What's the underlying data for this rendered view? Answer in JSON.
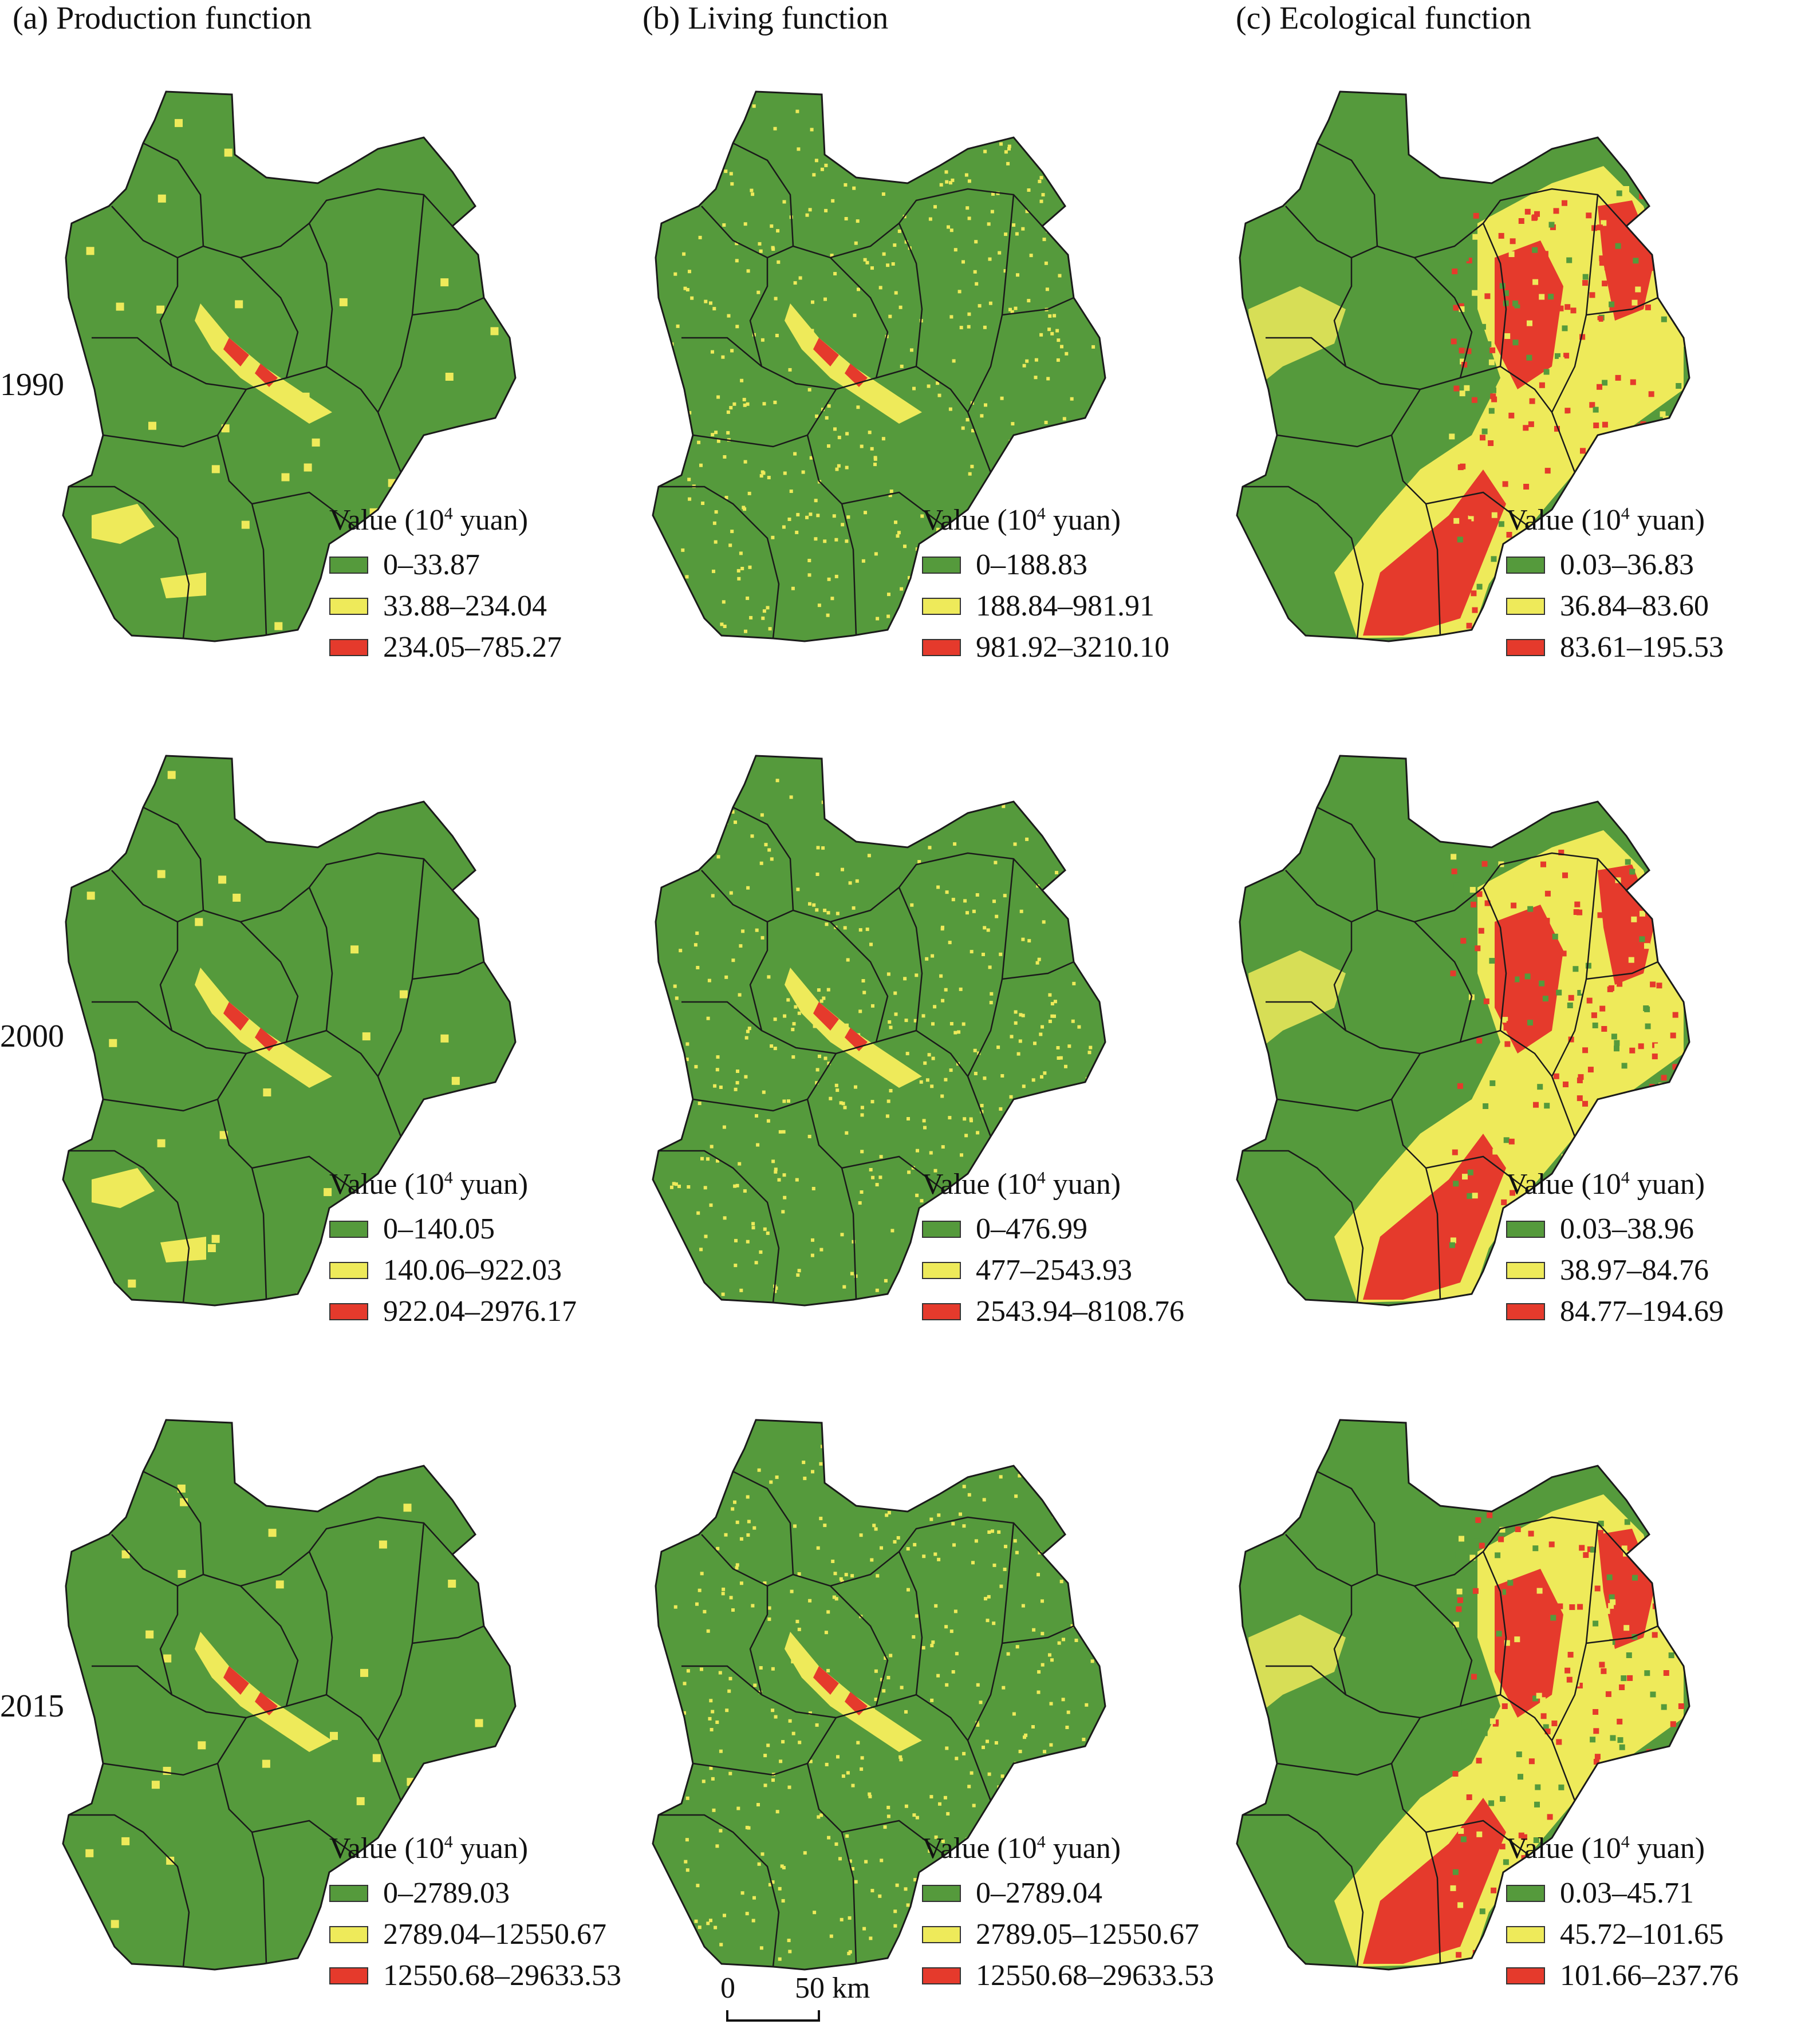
{
  "columns": [
    {
      "title": "(a) Production function"
    },
    {
      "title": "(b) Living function"
    },
    {
      "title": "(c) Ecological function"
    }
  ],
  "rows": [
    {
      "year": "1990"
    },
    {
      "year": "2000"
    },
    {
      "year": "2015"
    }
  ],
  "legend_title": {
    "prefix": "Value (10",
    "sup": "4",
    "suffix": " yuan)"
  },
  "class_colors": {
    "low": "#559a3c",
    "mid": "#eeea5a",
    "high": "#e53a2c"
  },
  "boundary_color": "#1a1a1a",
  "panels": [
    [
      {
        "column": "production",
        "year": "1990",
        "classes": [
          "0–33.87",
          "33.88–234.04",
          "234.05–785.27"
        ]
      },
      {
        "column": "living",
        "year": "1990",
        "classes": [
          "0–188.83",
          "188.84–981.91",
          "981.92–3210.10"
        ]
      },
      {
        "column": "ecological",
        "year": "1990",
        "classes": [
          "0.03–36.83",
          "36.84–83.60",
          "83.61–195.53"
        ]
      }
    ],
    [
      {
        "column": "production",
        "year": "2000",
        "classes": [
          "0–140.05",
          "140.06–922.03",
          "922.04–2976.17"
        ]
      },
      {
        "column": "living",
        "year": "2000",
        "classes": [
          "0–476.99",
          "477–2543.93",
          "2543.94–8108.76"
        ]
      },
      {
        "column": "ecological",
        "year": "2000",
        "classes": [
          "0.03–38.96",
          "38.97–84.76",
          "84.77–194.69"
        ]
      }
    ],
    [
      {
        "column": "production",
        "year": "2015",
        "classes": [
          "0–2789.03",
          "2789.04–12550.67",
          "12550.68–29633.53"
        ]
      },
      {
        "column": "living",
        "year": "2015",
        "classes": [
          "0–2789.04",
          "2789.05–12550.67",
          "12550.68–29633.53"
        ]
      },
      {
        "column": "ecological",
        "year": "2015",
        "classes": [
          "0.03–45.71",
          "45.72–101.65",
          "101.66–237.76"
        ]
      }
    ]
  ],
  "scale_bar": {
    "start": "0",
    "end": "50 km"
  }
}
